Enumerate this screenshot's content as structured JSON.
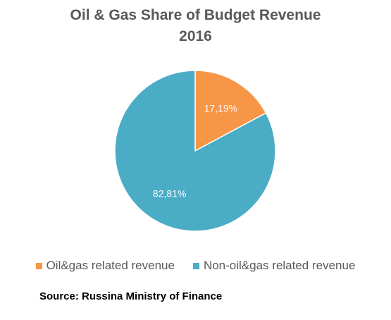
{
  "chart_data": {
    "type": "pie",
    "title": "Oil & Gas Share of Budget Revenue",
    "subtitle": "2016",
    "slices": [
      {
        "label": "Oil&gas related revenue",
        "value": 17.19,
        "display": "17,19%",
        "color": "#F79646"
      },
      {
        "label": "Non-oil&gas related revenue",
        "value": 82.81,
        "display": "82,81%",
        "color": "#4BACC6"
      }
    ],
    "legend_position": "bottom"
  },
  "source": "Source: Russina Ministry of Finance"
}
